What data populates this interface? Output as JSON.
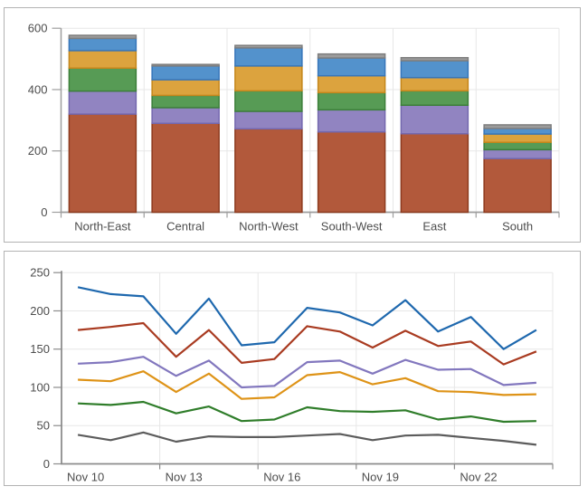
{
  "chart_data": [
    {
      "type": "bar",
      "stacked": true,
      "categories": [
        "North-East",
        "Central",
        "North-West",
        "South-West",
        "East",
        "South"
      ],
      "series": [
        {
          "name": "series-1-rust",
          "fill": "#B2593B",
          "stroke": "#8D3B1F",
          "values": [
            320,
            290,
            272,
            262,
            256,
            175
          ]
        },
        {
          "name": "series-2-purple",
          "fill": "#9184C1",
          "stroke": "#7468AF",
          "values": [
            75,
            51,
            57,
            72,
            93,
            29
          ]
        },
        {
          "name": "series-3-green",
          "fill": "#579B55",
          "stroke": "#3C7F3A",
          "values": [
            75,
            40,
            67,
            56,
            47,
            24
          ]
        },
        {
          "name": "series-4-gold",
          "fill": "#DCA33E",
          "stroke": "#C4861B",
          "values": [
            57,
            51,
            81,
            55,
            43,
            27
          ]
        },
        {
          "name": "series-5-blue",
          "fill": "#5392CC",
          "stroke": "#3776BA",
          "values": [
            40,
            45,
            59,
            58,
            55,
            18
          ]
        },
        {
          "name": "series-6-gray",
          "fill": "#9C9C9C",
          "stroke": "#7E7E7E",
          "values": [
            10,
            5,
            8,
            13,
            10,
            12
          ]
        }
      ],
      "y_ticks": [
        0,
        200,
        400,
        600
      ],
      "ylim": [
        0,
        600
      ],
      "grid": true,
      "legend": "none"
    },
    {
      "type": "line",
      "n_points": 15,
      "x_labels": [
        "Nov 10",
        "Nov 13",
        "Nov 16",
        "Nov 19",
        "Nov 22"
      ],
      "x_label_positions": [
        0,
        3,
        6,
        9,
        12
      ],
      "series": [
        {
          "name": "line-blue",
          "color": "#1E68AE",
          "values": [
            231,
            222,
            219,
            170,
            216,
            155,
            159,
            204,
            198,
            181,
            214,
            173,
            192,
            150,
            175
          ]
        },
        {
          "name": "line-red",
          "color": "#A93B21",
          "values": [
            175,
            179,
            184,
            140,
            175,
            132,
            137,
            180,
            173,
            152,
            174,
            154,
            160,
            130,
            147
          ]
        },
        {
          "name": "line-purple",
          "color": "#8277BE",
          "values": [
            131,
            133,
            140,
            115,
            135,
            100,
            102,
            133,
            135,
            118,
            136,
            123,
            124,
            103,
            106
          ]
        },
        {
          "name": "line-orange",
          "color": "#DE9317",
          "values": [
            110,
            108,
            121,
            94,
            118,
            85,
            87,
            116,
            120,
            104,
            112,
            95,
            94,
            90,
            91
          ]
        },
        {
          "name": "line-green",
          "color": "#2F7D2A",
          "values": [
            79,
            77,
            81,
            66,
            75,
            56,
            58,
            74,
            69,
            68,
            70,
            58,
            62,
            55,
            56
          ]
        },
        {
          "name": "line-gray",
          "color": "#5C5C5C",
          "values": [
            38,
            31,
            41,
            29,
            36,
            35,
            35,
            37,
            39,
            31,
            37,
            38,
            34,
            30,
            25
          ]
        }
      ],
      "y_ticks": [
        0,
        50,
        100,
        150,
        200,
        250
      ],
      "ylim": [
        0,
        250
      ],
      "grid": true,
      "legend": "none"
    }
  ],
  "style": {
    "grid_color": "#e7e7e7",
    "axis_color_top": "#9e9e9e",
    "axis_color_bottom": "#8c8c8c",
    "label_color": "#4d4d4d",
    "panel_border": "#b3b3b3"
  }
}
